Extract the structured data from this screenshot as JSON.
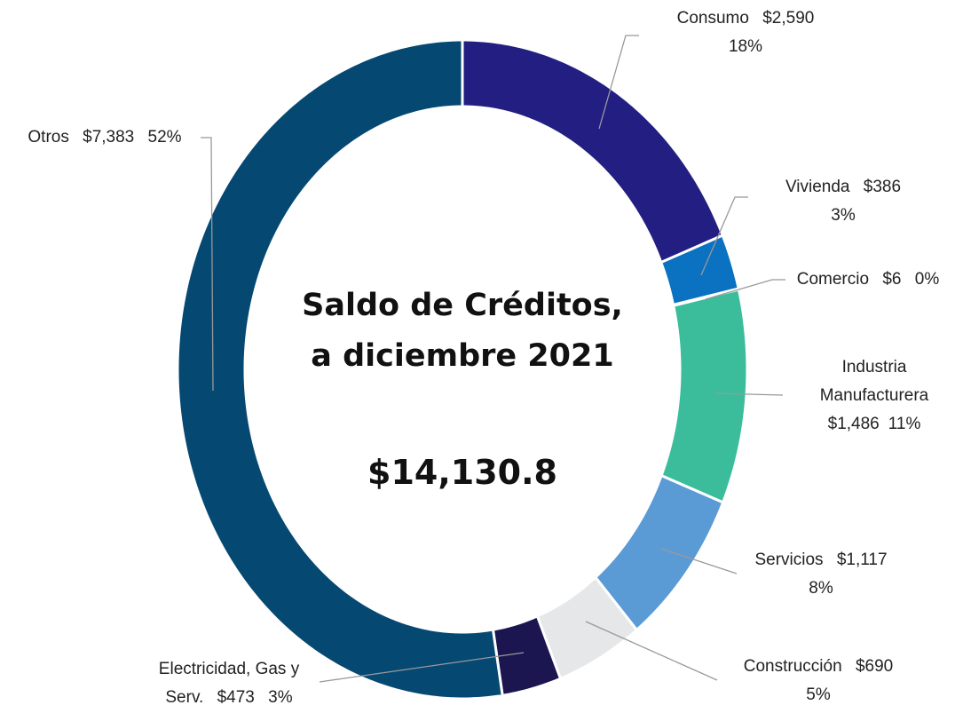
{
  "chart_data": {
    "type": "pie",
    "title": "Saldo de Créditos,",
    "subtitle": "a diciembre 2021",
    "total": 14130.8,
    "total_label": "$14,130.8",
    "categories": [
      "Consumo",
      "Vivienda",
      "Comercio",
      "Industria Manufacturera",
      "Servicios",
      "Construcción",
      "Electricidad, Gas y Serv.",
      "Otros"
    ],
    "values": [
      2590,
      386,
      6,
      1486,
      1117,
      690,
      473,
      7383
    ],
    "value_labels": [
      "$2,590",
      "$386",
      "$6",
      "$1,486",
      "$1,117",
      "$690",
      "$473",
      "$7,383"
    ],
    "percent_labels": [
      "18%",
      "3%",
      "0%",
      "11%",
      "8%",
      "5%",
      "3%",
      "52%"
    ],
    "colors": [
      "#231f82",
      "#0a72c0",
      "#2a8ad0",
      "#3bbd9c",
      "#5b9bd5",
      "#e6e7e8",
      "#1b1650",
      "#054872"
    ]
  }
}
